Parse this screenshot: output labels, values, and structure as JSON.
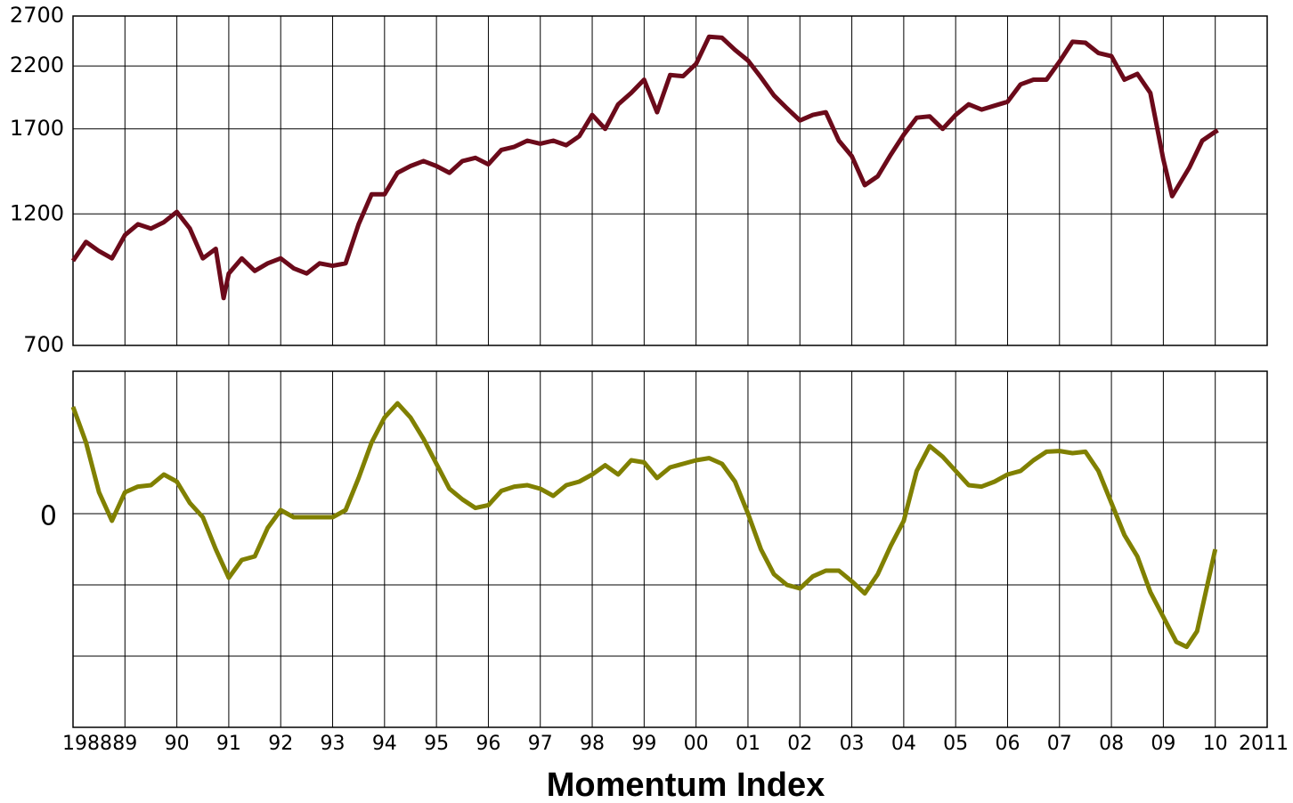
{
  "chart_data": [
    {
      "type": "line",
      "log_scale": true,
      "grid": true,
      "ylim": [
        700,
        2700
      ],
      "yticks": [
        700,
        1200,
        1700,
        2200,
        2700
      ],
      "x": [
        1988,
        1988.25,
        1988.5,
        1988.75,
        1989,
        1989.25,
        1989.5,
        1989.75,
        1990,
        1990.25,
        1990.5,
        1990.75,
        1990.9,
        1991,
        1991.25,
        1991.5,
        1991.75,
        1992,
        1992.25,
        1992.5,
        1992.75,
        1993,
        1993.25,
        1993.5,
        1993.75,
        1994,
        1994.25,
        1994.5,
        1994.75,
        1995,
        1995.25,
        1995.5,
        1995.75,
        1996,
        1996.25,
        1996.5,
        1996.75,
        1997,
        1997.25,
        1997.5,
        1997.75,
        1998,
        1998.25,
        1998.5,
        1998.75,
        1999,
        1999.25,
        1999.5,
        1999.75,
        2000,
        2000.25,
        2000.5,
        2000.75,
        2001,
        2001.25,
        2001.5,
        2001.75,
        2002,
        2002.25,
        2002.5,
        2002.75,
        2003,
        2003.25,
        2003.5,
        2003.75,
        2004,
        2004.25,
        2004.5,
        2004.75,
        2005,
        2005.25,
        2005.5,
        2005.75,
        2006,
        2006.25,
        2006.5,
        2006.75,
        2007,
        2007.25,
        2007.5,
        2007.75,
        2008,
        2008.25,
        2008.5,
        2008.75,
        2009,
        2009.17,
        2009.5,
        2009.75,
        2010,
        2010.05
      ],
      "series": [
        {
          "color": "#6b0a1a",
          "values": [
            990,
            1070,
            1030,
            1000,
            1100,
            1150,
            1130,
            1160,
            1210,
            1130,
            1000,
            1040,
            850,
            940,
            1000,
            950,
            980,
            1000,
            960,
            940,
            980,
            970,
            980,
            1150,
            1300,
            1300,
            1420,
            1460,
            1490,
            1460,
            1420,
            1490,
            1510,
            1470,
            1560,
            1580,
            1620,
            1600,
            1620,
            1590,
            1650,
            1800,
            1700,
            1880,
            1970,
            2080,
            1820,
            2120,
            2110,
            2220,
            2480,
            2470,
            2350,
            2250,
            2100,
            1950,
            1850,
            1760,
            1800,
            1820,
            1620,
            1520,
            1350,
            1400,
            1530,
            1660,
            1780,
            1790,
            1700,
            1800,
            1880,
            1840,
            1870,
            1900,
            2040,
            2080,
            2080,
            2240,
            2430,
            2420,
            2320,
            2290,
            2080,
            2130,
            1970,
            1500,
            1290,
            1450,
            1620,
            1680,
            1690
          ]
        }
      ]
    },
    {
      "type": "line",
      "title": "Momentum Index",
      "grid": true,
      "ylim": [
        -3,
        2
      ],
      "yticks": [
        0
      ],
      "ygrid": [
        -2,
        -1,
        1
      ],
      "xlim": [
        1988,
        2011
      ],
      "xticks": [
        1988,
        {
          "value": 1989,
          "label": "89"
        },
        {
          "value": 1990,
          "label": "90"
        },
        {
          "value": 1991,
          "label": "91"
        },
        {
          "value": 1992,
          "label": "92"
        },
        {
          "value": 1993,
          "label": "93"
        },
        {
          "value": 1994,
          "label": "94"
        },
        {
          "value": 1995,
          "label": "95"
        },
        {
          "value": 1996,
          "label": "96"
        },
        {
          "value": 1997,
          "label": "97"
        },
        {
          "value": 1998,
          "label": "98"
        },
        {
          "value": 1999,
          "label": "99"
        },
        {
          "value": 2000,
          "label": "00"
        },
        {
          "value": 2001,
          "label": "01"
        },
        {
          "value": 2002,
          "label": "02"
        },
        {
          "value": 2003,
          "label": "03"
        },
        {
          "value": 2004,
          "label": "04"
        },
        {
          "value": 2005,
          "label": "05"
        },
        {
          "value": 2006,
          "label": "06"
        },
        {
          "value": 2007,
          "label": "07"
        },
        {
          "value": 2008,
          "label": "08"
        },
        {
          "value": 2009,
          "label": "09"
        },
        {
          "value": 2010,
          "label": "10"
        },
        2011
      ],
      "x": [
        1988,
        1988.25,
        1988.5,
        1988.75,
        1989,
        1989.25,
        1989.5,
        1989.75,
        1990,
        1990.25,
        1990.5,
        1990.75,
        1991,
        1991.25,
        1991.5,
        1991.75,
        1992,
        1992.25,
        1992.5,
        1992.75,
        1993,
        1993.25,
        1993.5,
        1993.75,
        1994,
        1994.25,
        1994.5,
        1994.75,
        1995,
        1995.25,
        1995.5,
        1995.75,
        1996,
        1996.25,
        1996.5,
        1996.75,
        1997,
        1997.25,
        1997.5,
        1997.75,
        1998,
        1998.25,
        1998.5,
        1998.75,
        1999,
        1999.25,
        1999.5,
        1999.75,
        2000,
        2000.25,
        2000.5,
        2000.75,
        2001,
        2001.25,
        2001.5,
        2001.75,
        2002,
        2002.25,
        2002.5,
        2002.75,
        2003,
        2003.25,
        2003.5,
        2003.75,
        2004,
        2004.25,
        2004.5,
        2004.75,
        2005,
        2005.25,
        2005.5,
        2005.75,
        2006,
        2006.25,
        2006.5,
        2006.75,
        2007,
        2007.25,
        2007.5,
        2007.75,
        2008,
        2008.25,
        2008.5,
        2008.75,
        2009,
        2009.25,
        2009.45,
        2009.65,
        2010
      ],
      "series": [
        {
          "color": "#808000",
          "values": [
            1.5,
            1.0,
            0.3,
            -0.1,
            0.3,
            0.38,
            0.4,
            0.55,
            0.45,
            0.15,
            -0.05,
            -0.5,
            -0.9,
            -0.65,
            -0.6,
            -0.2,
            0.05,
            -0.05,
            -0.05,
            -0.05,
            -0.05,
            0.05,
            0.5,
            1.0,
            1.35,
            1.55,
            1.35,
            1.05,
            0.7,
            0.35,
            0.2,
            0.08,
            0.12,
            0.32,
            0.38,
            0.4,
            0.35,
            0.25,
            0.4,
            0.45,
            0.55,
            0.68,
            0.55,
            0.75,
            0.72,
            0.5,
            0.65,
            0.7,
            0.75,
            0.78,
            0.7,
            0.45,
            0.0,
            -0.5,
            -0.85,
            -1.0,
            -1.05,
            -0.88,
            -0.8,
            -0.8,
            -0.95,
            -1.12,
            -0.85,
            -0.45,
            -0.1,
            0.6,
            0.95,
            0.8,
            0.6,
            0.4,
            0.38,
            0.45,
            0.55,
            0.6,
            0.75,
            0.87,
            0.88,
            0.85,
            0.87,
            0.6,
            0.15,
            -0.3,
            -0.6,
            -1.1,
            -1.45,
            -1.8,
            -1.87,
            -1.65,
            -0.5
          ]
        }
      ]
    }
  ]
}
